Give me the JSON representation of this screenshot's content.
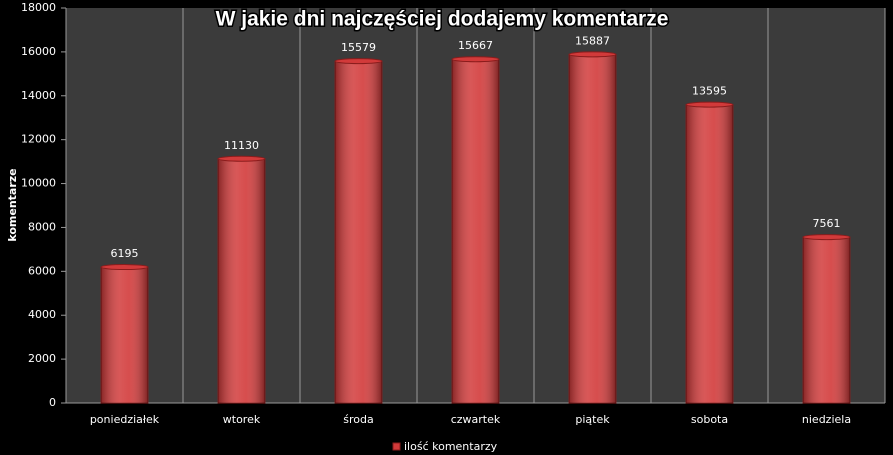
{
  "chart_data": {
    "type": "bar",
    "title": "W jakie dni najczęściej dodajemy komentarze",
    "y_label": "komentarze",
    "categories": [
      "poniedziałek",
      "wtorek",
      "środa",
      "czwartek",
      "piątek",
      "sobota",
      "niedziela"
    ],
    "series": [
      {
        "name": "ilość komentarzy",
        "color": "#d23a3a",
        "values": [
          6195,
          11130,
          15579,
          15667,
          15887,
          13595,
          7561
        ]
      }
    ],
    "ylim": [
      0,
      18000
    ],
    "yticks": [
      0,
      2000,
      4000,
      6000,
      8000,
      10000,
      12000,
      14000,
      16000,
      18000
    ],
    "grid": "x",
    "data_labels": true,
    "legend": "bottom"
  }
}
